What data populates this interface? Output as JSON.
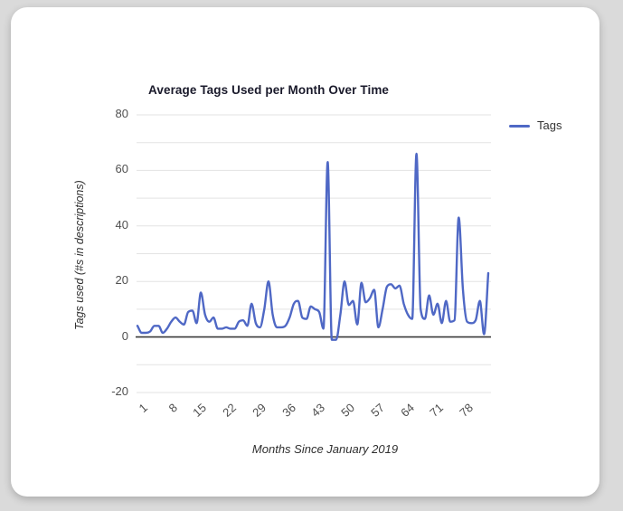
{
  "window": {
    "background_color": "#dadada",
    "card_color": "#ffffff"
  },
  "legend": {
    "items": [
      {
        "label": "Tags",
        "color": "#4f68c5"
      }
    ]
  },
  "chart_data": {
    "type": "line",
    "title": "Average Tags Used per Month Over Time",
    "xlabel": "Months Since January 2019",
    "ylabel": "Tags used (#s in descriptions)",
    "legend_entries": [
      "Tags"
    ],
    "legend_position": "right",
    "line_color": "#4f68c5",
    "grid_color": "#e3e3e3",
    "zero_line_color": "#3a3a3a",
    "tick_color": "#4f4f4f",
    "grid": true,
    "smooth": true,
    "ylim": [
      -20,
      80
    ],
    "y_grid_step": 10,
    "yticks_labeled": [
      80,
      60,
      40,
      20,
      0,
      -20
    ],
    "xticks": [
      1,
      8,
      15,
      22,
      29,
      36,
      43,
      50,
      57,
      64,
      71,
      78
    ],
    "x_start": 1,
    "n_months": 84,
    "values": [
      4,
      1.5,
      1.5,
      2,
      4,
      4,
      1.5,
      3,
      5.5,
      7,
      5.5,
      4.5,
      9,
      9.5,
      5,
      16,
      8,
      5.5,
      7,
      3,
      3,
      3.5,
      3,
      3,
      5.5,
      6,
      4,
      12,
      5,
      3.5,
      10,
      20,
      8,
      3.5,
      3.5,
      4,
      7,
      12,
      13,
      7,
      6.5,
      11,
      10,
      9,
      3,
      63,
      -1,
      -1,
      8,
      20,
      11.5,
      13,
      4.5,
      19.5,
      12.5,
      14,
      17,
      3.5,
      10,
      18,
      19,
      17.5,
      18.5,
      12,
      8,
      6.5,
      66,
      10,
      6.5,
      15,
      8,
      12,
      5,
      13,
      5.5,
      6,
      43,
      17,
      5.5,
      5,
      6,
      13,
      1,
      23
    ]
  }
}
